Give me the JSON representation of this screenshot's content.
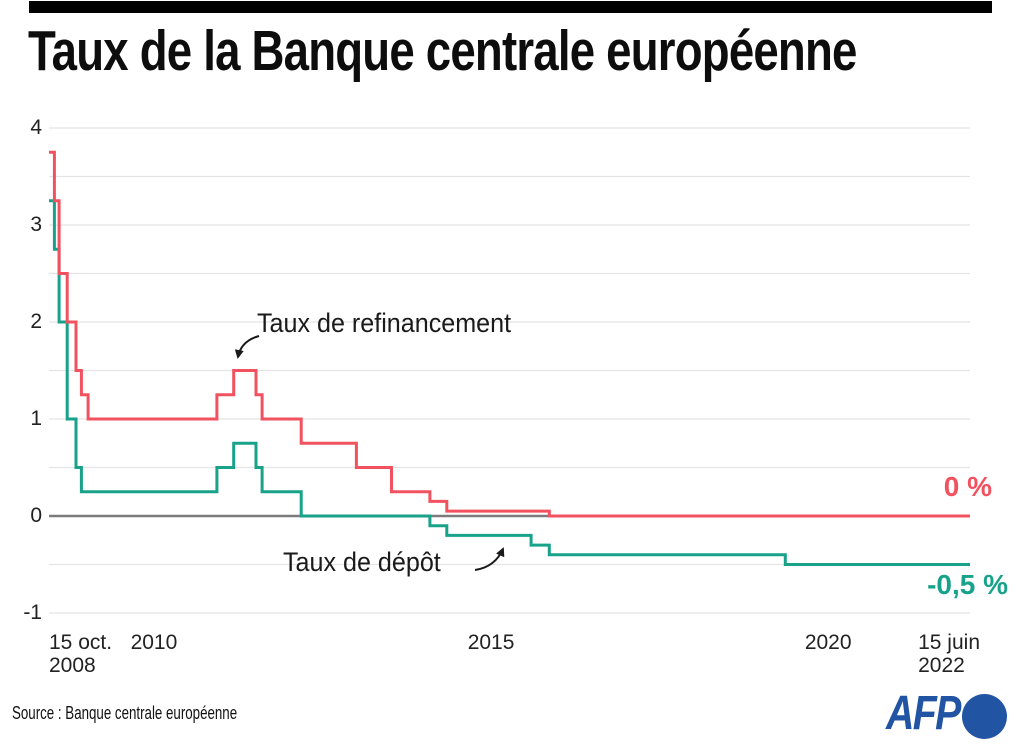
{
  "header": {
    "title": "Taux de la Banque centrale européenne"
  },
  "colors": {
    "refinancing": "#f2525f",
    "deposit": "#19a28a",
    "grid": "#e4e4e4",
    "zero_line": "#7b7b7b",
    "text": "#1a1a1a",
    "title_bar": "#000000",
    "afp_blue": "#2154a3"
  },
  "chart_data": {
    "type": "line",
    "step": true,
    "title": "Taux de la Banque centrale européenne",
    "xlabel": "",
    "ylabel": "",
    "ylim": [
      -1,
      4
    ],
    "grid_interval": 0.5,
    "grid_on": true,
    "yticks": [
      "4",
      "3",
      "2",
      "1",
      "0",
      "-1"
    ],
    "ytick_values": [
      4,
      3,
      2,
      1,
      0,
      -1
    ],
    "x_range": [
      2008.79,
      2022.45
    ],
    "xticks": [
      {
        "lines": [
          "15 oct.",
          "2008"
        ],
        "year": 2008.79,
        "align": "left"
      },
      {
        "lines": [
          "2010"
        ],
        "year": 2010,
        "align": "left"
      },
      {
        "lines": [
          "2015"
        ],
        "year": 2015,
        "align": "left"
      },
      {
        "lines": [
          "2020"
        ],
        "year": 2020,
        "align": "left"
      },
      {
        "lines": [
          "15 juin",
          "2022"
        ],
        "year": 2022.45,
        "align": "right"
      }
    ],
    "series": [
      {
        "name": "Taux de dépôt",
        "color": "#19a28a",
        "end_label": "-0,5 %",
        "unit": "%",
        "points": [
          [
            2008.79,
            3.25
          ],
          [
            2008.87,
            2.75
          ],
          [
            2008.94,
            2.0
          ],
          [
            2009.06,
            1.0
          ],
          [
            2009.19,
            0.5
          ],
          [
            2009.27,
            0.25
          ],
          [
            2011.28,
            0.5
          ],
          [
            2011.53,
            0.75
          ],
          [
            2011.86,
            0.5
          ],
          [
            2011.95,
            0.25
          ],
          [
            2012.53,
            0.0
          ],
          [
            2014.44,
            -0.1
          ],
          [
            2014.69,
            -0.2
          ],
          [
            2015.94,
            -0.3
          ],
          [
            2016.21,
            -0.4
          ],
          [
            2019.71,
            -0.5
          ]
        ]
      },
      {
        "name": "Taux de refinancement",
        "color": "#f2525f",
        "end_label": "0 %",
        "unit": "%",
        "points": [
          [
            2008.79,
            3.75
          ],
          [
            2008.87,
            3.25
          ],
          [
            2008.94,
            2.5
          ],
          [
            2009.06,
            2.0
          ],
          [
            2009.19,
            1.5
          ],
          [
            2009.27,
            1.25
          ],
          [
            2009.37,
            1.0
          ],
          [
            2011.28,
            1.25
          ],
          [
            2011.53,
            1.5
          ],
          [
            2011.86,
            1.25
          ],
          [
            2011.95,
            1.0
          ],
          [
            2012.53,
            0.75
          ],
          [
            2013.35,
            0.5
          ],
          [
            2013.87,
            0.25
          ],
          [
            2014.44,
            0.15
          ],
          [
            2014.69,
            0.05
          ],
          [
            2016.21,
            0.0
          ]
        ]
      }
    ],
    "legend_position": "annotations-on-plot"
  },
  "footer": {
    "source": "Source : Banque centrale européenne",
    "logo_text": "AFP"
  }
}
